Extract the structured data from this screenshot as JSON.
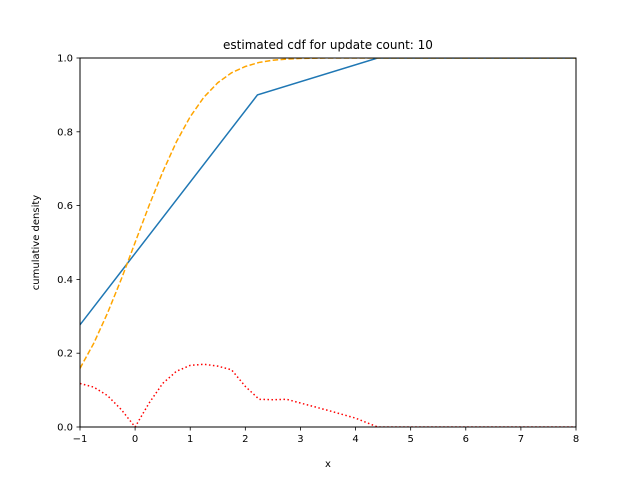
{
  "chart_data": {
    "type": "line",
    "title": "estimated cdf for update count: 10",
    "xlabel": "x",
    "ylabel": "cumulative density",
    "xlim": [
      -1,
      8
    ],
    "ylim": [
      0,
      1
    ],
    "xticks": [
      -1,
      0,
      1,
      2,
      3,
      4,
      5,
      6,
      7,
      8
    ],
    "yticks": [
      0.0,
      0.2,
      0.4,
      0.6,
      0.8,
      1.0
    ],
    "xtick_labels": [
      "−1",
      "0",
      "1",
      "2",
      "3",
      "4",
      "5",
      "6",
      "7",
      "8"
    ],
    "ytick_labels": [
      "0.0",
      "0.2",
      "0.4",
      "0.6",
      "0.8",
      "1.0"
    ],
    "grid": false,
    "series": [
      {
        "style": "solid",
        "color": "#1f77b4",
        "x": [
          -1.0,
          2.22,
          4.4,
          8.0
        ],
        "y": [
          0.277,
          0.9,
          1.0,
          1.0
        ]
      },
      {
        "style": "dashed",
        "color": "#ffa500",
        "x": [
          -1.0,
          -0.75,
          -0.5,
          -0.25,
          0.0,
          0.25,
          0.5,
          0.75,
          1.0,
          1.25,
          1.5,
          1.75,
          2.0,
          2.25,
          2.5,
          2.75,
          3.0,
          3.5,
          8.0
        ],
        "y": [
          0.159,
          0.227,
          0.309,
          0.401,
          0.5,
          0.599,
          0.691,
          0.773,
          0.841,
          0.894,
          0.933,
          0.96,
          0.977,
          0.988,
          0.994,
          0.997,
          0.999,
          1.0,
          1.0
        ]
      },
      {
        "style": "dotted",
        "color": "#ff0000",
        "x": [
          -1.0,
          -0.75,
          -0.5,
          -0.25,
          0.0,
          0.25,
          0.5,
          0.75,
          1.0,
          1.25,
          1.5,
          1.75,
          2.0,
          2.25,
          2.5,
          2.75,
          3.0,
          3.5,
          4.0,
          4.4,
          5.0,
          8.0
        ],
        "y": [
          0.118,
          0.108,
          0.085,
          0.047,
          0.0,
          0.064,
          0.118,
          0.151,
          0.167,
          0.17,
          0.165,
          0.155,
          0.11,
          0.075,
          0.074,
          0.075,
          0.065,
          0.045,
          0.024,
          0.0,
          0.0,
          0.0
        ]
      }
    ]
  }
}
